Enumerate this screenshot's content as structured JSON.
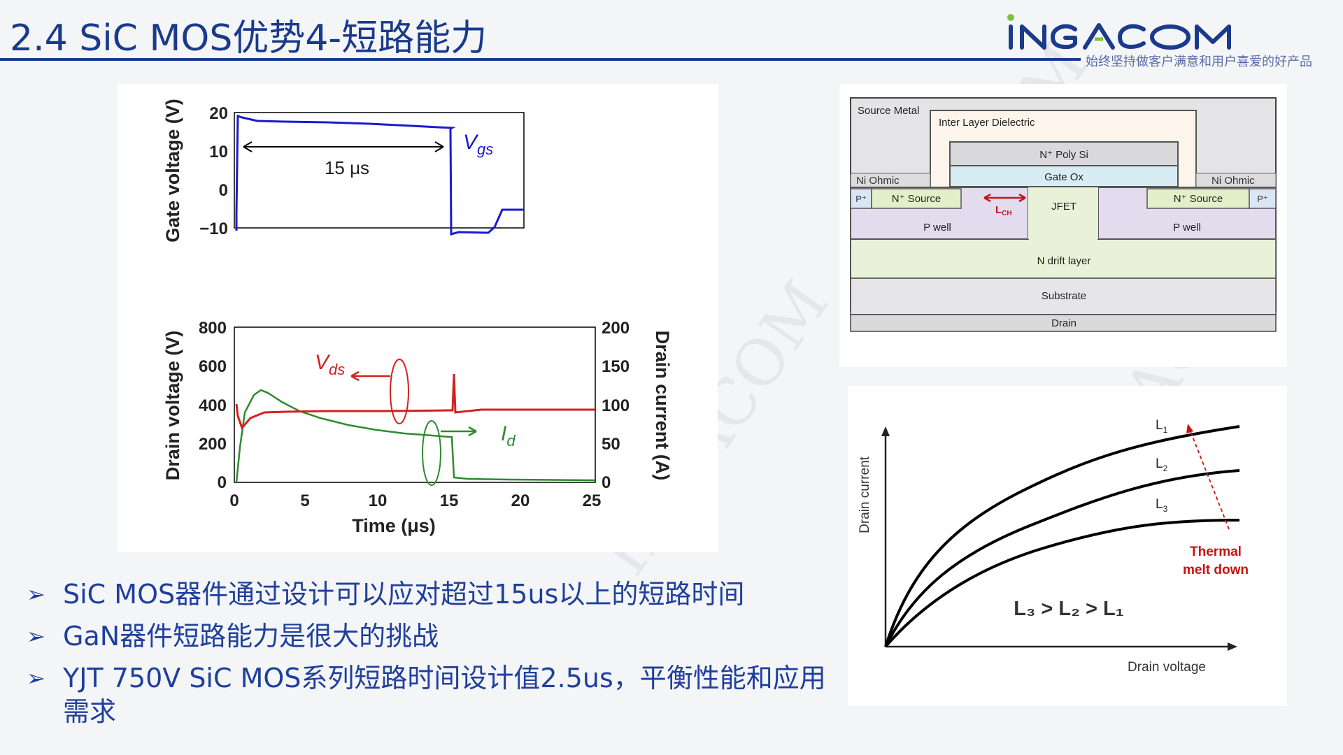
{
  "header": {
    "title": "2.4 SiC MOS优势4-短路能力",
    "logo_text": "iNGACOM",
    "tagline": "始终坚持做客户满意和用户喜爱的好产品"
  },
  "waveform": {
    "top": {
      "ylabel": "Gate voltage (V)",
      "yticks": [
        "20",
        "10",
        "0",
        "−10"
      ],
      "annotation_duration": "15 μs",
      "series_label": "V",
      "series_sub": "gs"
    },
    "bottom": {
      "ylabel_left": "Drain voltage (V)",
      "ylabel_right": "Drain current (A)",
      "yticks_left": [
        "800",
        "600",
        "400",
        "200",
        "0"
      ],
      "yticks_right": [
        "200",
        "150",
        "100",
        "50",
        "0"
      ],
      "xticks": [
        "0",
        "5",
        "10",
        "15",
        "20",
        "25"
      ],
      "xlabel": "Time (μs)",
      "vds_label": "V",
      "vds_sub": "ds",
      "id_label": "I",
      "id_sub": "d"
    }
  },
  "cross_section": {
    "source_metal": "Source Metal",
    "ild": "Inter Layer  Dielectric",
    "poly": "N⁺ Poly Si",
    "gate_ox": "Gate Ox",
    "ni_ohmic_left": "Ni Ohmic",
    "ni_ohmic_right": "Ni Ohmic",
    "p_plus_left": "P⁺",
    "p_plus_right": "P⁺",
    "n_source_left": "N⁺ Source",
    "n_source_right": "N⁺ Source",
    "lch": "L",
    "lch_sub": "CH",
    "jfet": "JFET",
    "p_well_left": "P well",
    "p_well_right": "P well",
    "drift": "N drift layer",
    "substrate": "Substrate",
    "drain": "Drain"
  },
  "iv_curves": {
    "ylabel": "Drain current",
    "xlabel": "Drain voltage",
    "curve_labels": [
      {
        "main": "L",
        "sub": "1"
      },
      {
        "main": "L",
        "sub": "2"
      },
      {
        "main": "L",
        "sub": "3"
      }
    ],
    "thermal_line1": "Thermal",
    "thermal_line2": "melt down",
    "relation": "L₃ > L₂ > L₁"
  },
  "bullets": [
    "SiC MOS器件通过设计可以应对超过15us以上的短路时间",
    "GaN器件短路能力是很大的挑战",
    "YJT 750V SiC MOS系列短路时间设计值2.5us，平衡性能和应用需求"
  ],
  "colors": {
    "title": "#1a3a8c",
    "bullet": "#1f3f9c",
    "vgs": "#1a1ad0",
    "vds": "#d42020",
    "id": "#2e8a2e",
    "thermal": "#cc1010"
  }
}
